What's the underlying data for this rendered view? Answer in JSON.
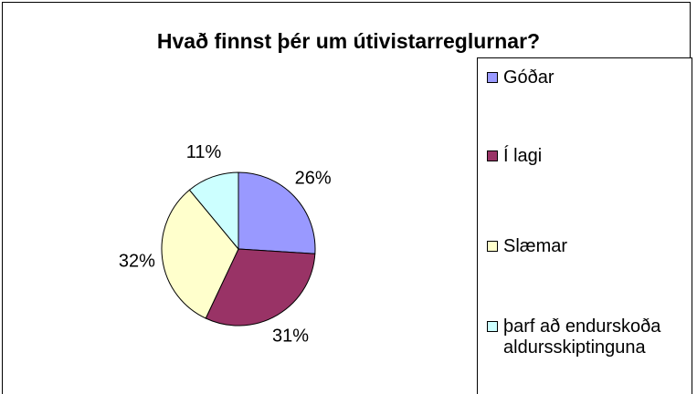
{
  "chart_data": {
    "type": "pie",
    "title": "Hvað finnst þér um útivistarreglurnar?",
    "categories": [
      "Góðar",
      "Í lagi",
      "Slæmar",
      "þarf að endurskoða aldursskiptinguna"
    ],
    "values": [
      26,
      31,
      32,
      11
    ],
    "value_labels": [
      "26%",
      "31%",
      "32%",
      "11%"
    ],
    "colors": [
      "#9999ff",
      "#993366",
      "#ffffcc",
      "#ccffff"
    ],
    "legend": "right"
  }
}
